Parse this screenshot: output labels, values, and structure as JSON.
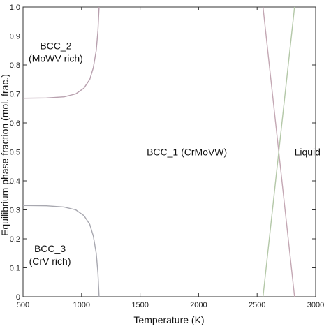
{
  "chart_data": {
    "type": "line",
    "xlabel": "Temperature (K)",
    "ylabel": "Equilibrium phase fraction (mol. frac.)",
    "xlim": [
      500,
      3000
    ],
    "ylim": [
      0,
      1.0
    ],
    "x_ticks": [
      "500",
      "1000",
      "1500",
      "2000",
      "2500",
      "3000"
    ],
    "y_ticks": [
      "0",
      "0.1",
      "0.2",
      "0.3",
      "0.4",
      "0.5",
      "0.6",
      "0.7",
      "0.8",
      "0.9",
      "1.0"
    ],
    "grid": false,
    "series": [
      {
        "color": "#b8a0ae",
        "points": [
          [
            500,
            0.685
          ],
          [
            700,
            0.686
          ],
          [
            850,
            0.69
          ],
          [
            950,
            0.7
          ],
          [
            1020,
            0.72
          ],
          [
            1070,
            0.75
          ],
          [
            1100,
            0.79
          ],
          [
            1125,
            0.85
          ],
          [
            1140,
            0.92
          ],
          [
            1150,
            1.0
          ]
        ]
      },
      {
        "color": "#a8a8b0",
        "points": [
          [
            500,
            0.315
          ],
          [
            700,
            0.314
          ],
          [
            850,
            0.31
          ],
          [
            950,
            0.3
          ],
          [
            1020,
            0.28
          ],
          [
            1070,
            0.25
          ],
          [
            1100,
            0.21
          ],
          [
            1125,
            0.15
          ],
          [
            1140,
            0.08
          ],
          [
            1150,
            0.0
          ]
        ]
      },
      {
        "color": "#c4a8b4",
        "points": [
          [
            2550,
            1.0
          ],
          [
            2820,
            0.0
          ]
        ]
      },
      {
        "color": "#b4c8a8",
        "points": [
          [
            2550,
            0.0
          ],
          [
            2820,
            1.0
          ]
        ]
      }
    ],
    "annotations": [
      {
        "lines": [
          "BCC_2",
          "(MoWV rich)"
        ],
        "x": 780,
        "y": 0.845
      },
      {
        "lines": [
          "BCC_1 (CrMoVW)"
        ],
        "x": 1900,
        "y": 0.5
      },
      {
        "lines": [
          "Liquid"
        ],
        "x": 2930,
        "y": 0.5
      },
      {
        "lines": [
          "BCC_3",
          "(CrV rich)"
        ],
        "x": 730,
        "y": 0.145
      }
    ]
  }
}
